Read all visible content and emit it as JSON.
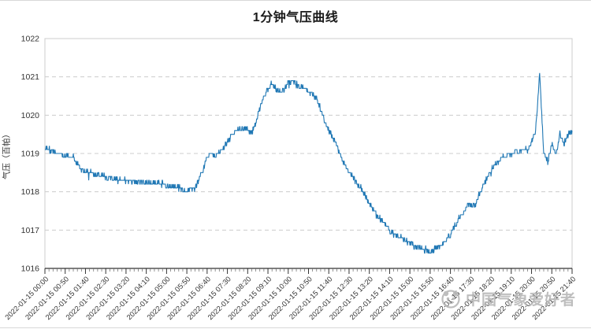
{
  "title": "1分钟气压曲线",
  "watermark": {
    "text": "中国气象爱好者"
  },
  "chart_data": {
    "type": "line",
    "title": "1分钟气压曲线",
    "xlabel": "",
    "ylabel": "气压（百帕）",
    "legend": [],
    "grid": "horizontal-dashed",
    "line_color": "#1f77b4",
    "axis_color": "#333333",
    "grid_color": "#cccccc",
    "ylim": [
      1016,
      1022
    ],
    "y_ticks": [
      1016,
      1017,
      1018,
      1019,
      1020,
      1021,
      1022
    ],
    "x_total_minutes": 1300,
    "sample_interval_min": 10,
    "minor_tick_min": 10,
    "major_tick_min": 50,
    "x_tick_labels": [
      "2022-01-15 00:00",
      "2022-01-15 00:50",
      "2022-01-15 01:40",
      "2022-01-15 02:30",
      "2022-01-15 03:20",
      "2022-01-15 04:10",
      "2022-01-15 05:00",
      "2022-01-15 05:50",
      "2022-01-15 06:40",
      "2022-01-15 07:30",
      "2022-01-15 08:20",
      "2022-01-15 09:10",
      "2022-01-15 10:00",
      "2022-01-15 10:50",
      "2022-01-15 11:40",
      "2022-01-15 12:30",
      "2022-01-15 13:20",
      "2022-01-15 14:10",
      "2022-01-15 15:00",
      "2022-01-15 15:50",
      "2022-01-15 16:40",
      "2022-01-15 17:30",
      "2022-01-15 18:20",
      "2022-01-15 19:10",
      "2022-01-15 20:00",
      "2022-01-15 20:50",
      "2022-01-15 21:40"
    ],
    "values": [
      1019.15,
      1019.1,
      1019.05,
      1019.0,
      1018.98,
      1018.95,
      1018.92,
      1018.9,
      1018.75,
      1018.58,
      1018.52,
      1018.5,
      1018.5,
      1018.45,
      1018.42,
      1018.4,
      1018.38,
      1018.33,
      1018.3,
      1018.32,
      1018.3,
      1018.28,
      1018.3,
      1018.28,
      1018.25,
      1018.25,
      1018.22,
      1018.25,
      1018.22,
      1018.2,
      1018.18,
      1018.15,
      1018.12,
      1018.1,
      1018.05,
      1017.95,
      1018.1,
      1018.05,
      1018.35,
      1018.6,
      1018.9,
      1019.0,
      1018.95,
      1019.05,
      1019.15,
      1019.3,
      1019.45,
      1019.6,
      1019.62,
      1019.65,
      1019.6,
      1019.55,
      1019.8,
      1020.2,
      1020.5,
      1020.65,
      1020.85,
      1020.7,
      1020.6,
      1020.65,
      1020.85,
      1020.9,
      1020.8,
      1020.75,
      1020.7,
      1020.6,
      1020.55,
      1020.45,
      1020.15,
      1019.85,
      1019.6,
      1019.4,
      1019.2,
      1018.9,
      1018.7,
      1018.5,
      1018.4,
      1018.2,
      1018.1,
      1017.9,
      1017.7,
      1017.55,
      1017.35,
      1017.25,
      1017.1,
      1017.0,
      1016.9,
      1016.85,
      1016.8,
      1016.7,
      1016.65,
      1016.6,
      1016.55,
      1016.5,
      1016.5,
      1016.45,
      1016.5,
      1016.55,
      1016.6,
      1016.75,
      1016.9,
      1017.1,
      1017.3,
      1017.45,
      1017.6,
      1017.7,
      1017.65,
      1017.9,
      1018.15,
      1018.35,
      1018.5,
      1018.7,
      1018.8,
      1018.9,
      1018.97,
      1019.0,
      1019.05,
      1019.05,
      1019.1,
      1019.1,
      1019.3,
      1019.55,
      1021.1,
      1019.0,
      1018.8,
      1019.25,
      1018.95,
      1019.55,
      1019.25,
      1019.5,
      1019.6
    ]
  }
}
